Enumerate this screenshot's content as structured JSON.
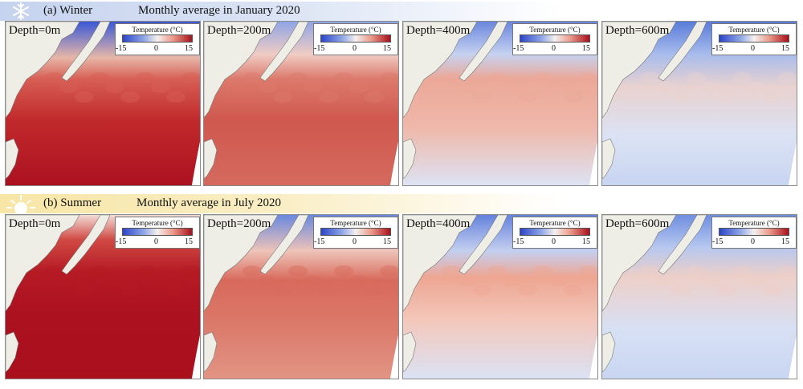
{
  "colors": {
    "land": "#eeeee6",
    "cold": "#2c45c8",
    "neutral": "#f4f0ee",
    "warm": "#a9101c"
  },
  "sections": [
    {
      "id": "winter",
      "icon": "snowflake-icon",
      "title": "(a) Winter",
      "subtitle": "Monthly average in January 2020",
      "panels": [
        {
          "depth": "Depth=0m",
          "legend_title": "Temperature (°C)",
          "ticks": [
            "-15",
            "0",
            "15"
          ]
        },
        {
          "depth": "Depth=200m",
          "legend_title": "Temperature (°C)",
          "ticks": [
            "-15",
            "0",
            "15"
          ]
        },
        {
          "depth": "Depth=400m",
          "legend_title": "Temperature (°C)",
          "ticks": [
            "-15",
            "0",
            "15"
          ]
        },
        {
          "depth": "Depth=600m",
          "legend_title": "Temperature (°C)",
          "ticks": [
            "-15",
            "0",
            "15"
          ]
        }
      ]
    },
    {
      "id": "summer",
      "icon": "sun-icon",
      "title": "(b) Summer",
      "subtitle": "Monthly average in July 2020",
      "panels": [
        {
          "depth": "Depth=0m",
          "legend_title": "Temperature (°C)",
          "ticks": [
            "-15",
            "0",
            "15"
          ]
        },
        {
          "depth": "Depth=200m",
          "legend_title": "Temperature (°C)",
          "ticks": [
            "-15",
            "0",
            "15"
          ]
        },
        {
          "depth": "Depth=400m",
          "legend_title": "Temperature (°C)",
          "ticks": [
            "-15",
            "0",
            "15"
          ]
        },
        {
          "depth": "Depth=600m",
          "legend_title": "Temperature (°C)",
          "ticks": [
            "-15",
            "0",
            "15"
          ]
        }
      ]
    }
  ]
}
